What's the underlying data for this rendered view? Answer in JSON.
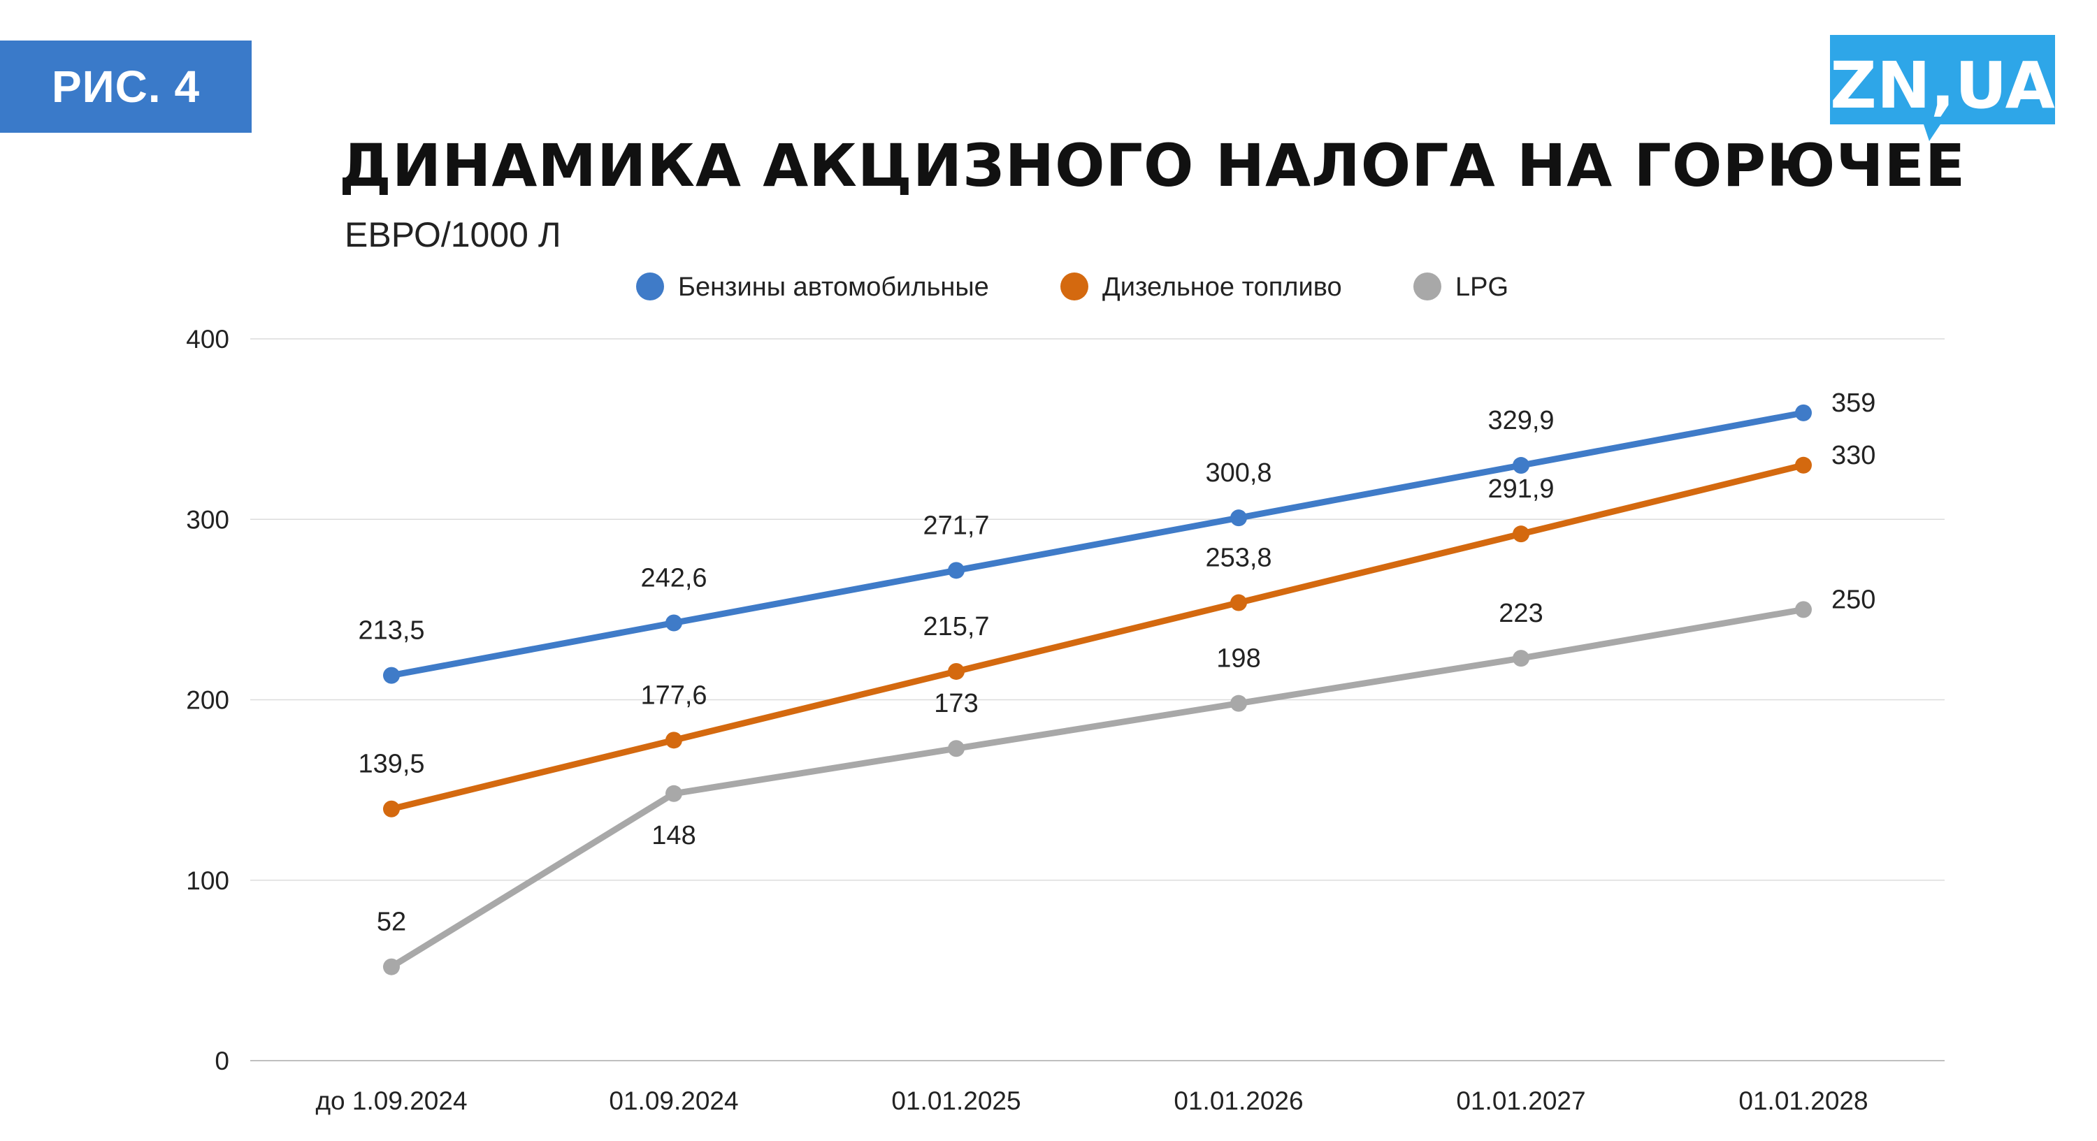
{
  "badge": "РИС. 4",
  "logo_text": "ZN,UA",
  "title": "ДИНАМИКА АКЦИЗНОГО НАЛОГА НА ГОРЮЧЕЕ",
  "subtitle": "ЕВРО/1000 Л",
  "colors": {
    "badge": "#3a7ac9",
    "logo": "#2ea6e8",
    "gridline": "#dcdcdc"
  },
  "chart_data": {
    "type": "line",
    "x": [
      "до 1.09.2024",
      "01.09.2024",
      "01.01.2025",
      "01.01.2026",
      "01.01.2027",
      "01.01.2028"
    ],
    "ylim": [
      0,
      400
    ],
    "yticks": [
      0,
      100,
      200,
      300,
      400
    ],
    "grid": true,
    "legend_position": "top",
    "series": [
      {
        "name": "Бензины автомобильные",
        "color": "#3f7bc8",
        "values": [
          213.5,
          242.6,
          271.7,
          300.8,
          329.9,
          359
        ],
        "labels": [
          "213,5",
          "242,6",
          "271,7",
          "300,8",
          "329,9",
          "359"
        ]
      },
      {
        "name": "Дизельное топливо",
        "color": "#d4690f",
        "values": [
          139.5,
          177.6,
          215.7,
          253.8,
          291.9,
          330
        ],
        "labels": [
          "139,5",
          "177,6",
          "215,7",
          "253,8",
          "291,9",
          "330"
        ]
      },
      {
        "name": "LPG",
        "color": "#a8a8a8",
        "values": [
          52,
          148,
          173,
          198,
          223,
          250
        ],
        "labels": [
          "52",
          "148",
          "173",
          "198",
          "223",
          "250"
        ]
      }
    ]
  }
}
